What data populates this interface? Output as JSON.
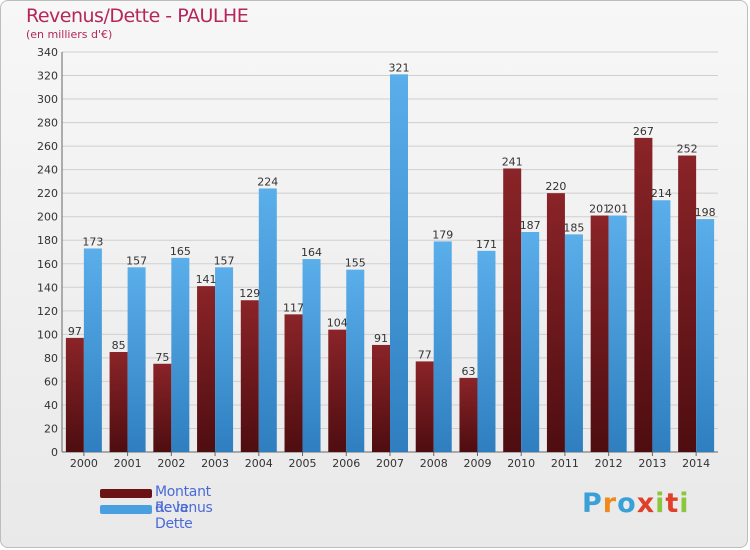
{
  "title": "Revenus/Dette - PAULHE",
  "subtitle": "(en milliers d'€)",
  "colors": {
    "dette": "#7a1a1f",
    "revenus": "#4a9fe0",
    "title": "#b5265b",
    "legend_text": "#4a6ad8"
  },
  "legend": {
    "dette_label": "Montant de la Dette",
    "revenus_label": "Revenus"
  },
  "logo": {
    "letters": [
      "P",
      "r",
      "o",
      "x",
      "i",
      "t",
      "i"
    ],
    "colors": [
      "#3aa0d8",
      "#f08a1c",
      "#3aa0d8",
      "#e0402a",
      "#8cc63f",
      "#e0402a",
      "#8cc63f"
    ]
  },
  "chart_data": {
    "type": "bar",
    "title": "Revenus/Dette - PAULHE",
    "subtitle": "(en milliers d'€)",
    "categories": [
      "2000",
      "2001",
      "2002",
      "2003",
      "2004",
      "2005",
      "2006",
      "2007",
      "2008",
      "2009",
      "2010",
      "2011",
      "2012",
      "2013",
      "2014"
    ],
    "series": [
      {
        "name": "Montant de la Dette",
        "values": [
          97,
          85,
          75,
          141,
          129,
          117,
          104,
          91,
          77,
          63,
          241,
          220,
          201,
          267,
          252
        ]
      },
      {
        "name": "Revenus",
        "values": [
          173,
          157,
          165,
          157,
          224,
          164,
          155,
          321,
          179,
          171,
          187,
          185,
          201,
          214,
          198
        ]
      }
    ],
    "ylim": [
      0,
      340
    ],
    "yticks": [
      0,
      20,
      40,
      60,
      80,
      100,
      120,
      140,
      160,
      180,
      200,
      220,
      240,
      260,
      280,
      300,
      320,
      340
    ],
    "grid": true,
    "legend_position": "bottom-left"
  }
}
